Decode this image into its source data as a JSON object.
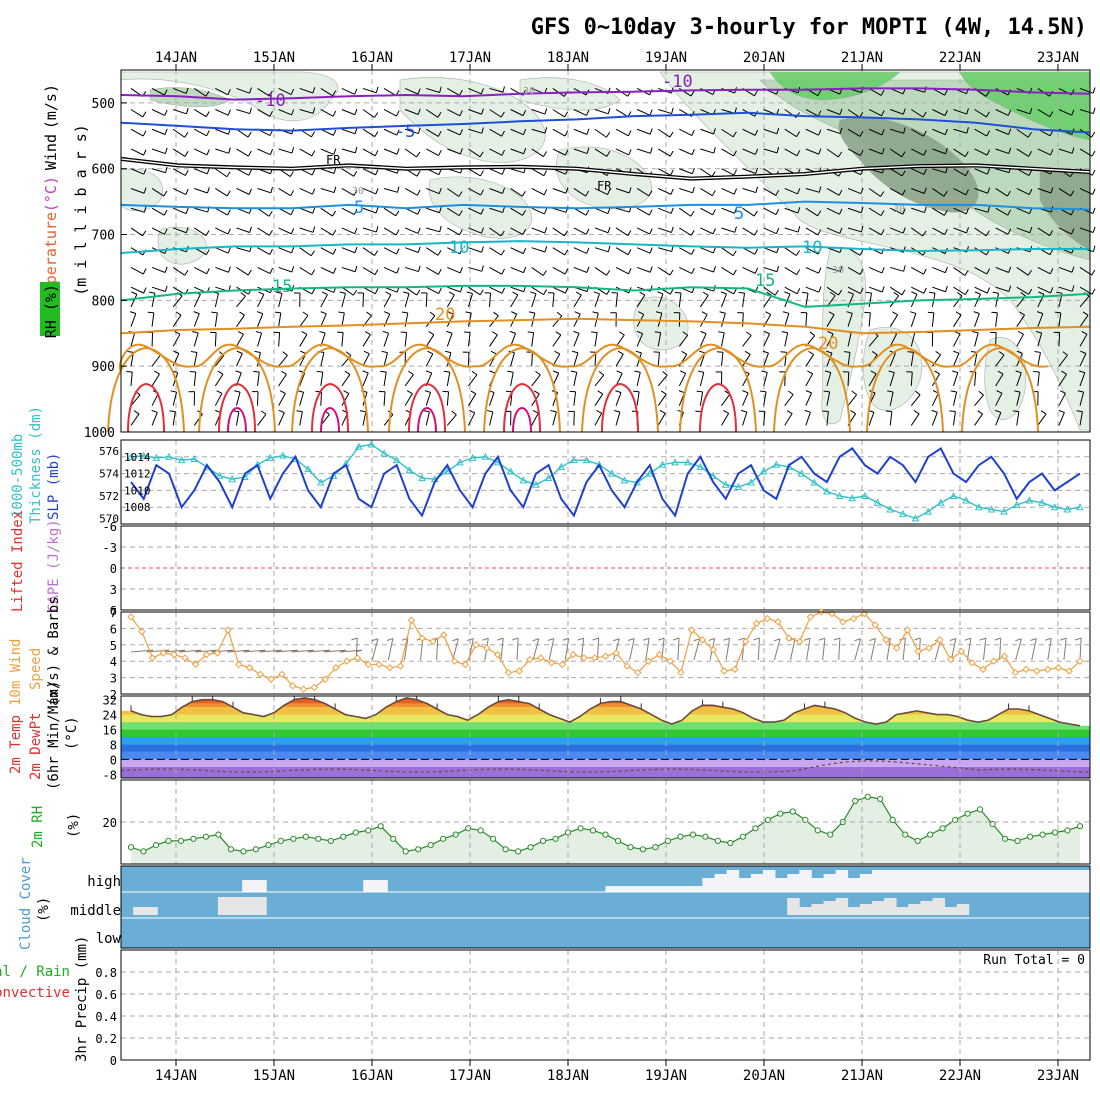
{
  "title": "GFS 0~10day 3-hourly for MOPTI (4W, 14.5N)",
  "date_labels": [
    "14JAN",
    "15JAN",
    "16JAN",
    "17JAN",
    "18JAN",
    "19JAN",
    "20JAN",
    "21JAN",
    "22JAN",
    "23JAN"
  ],
  "colors": {
    "temp_purple": "#8a1fc2",
    "temp_blue": "#1f4fd6",
    "temp_lightblue": "#1e90e0",
    "temp_cyan": "#19b5c9",
    "temp_green": "#12b883",
    "temp_orange": "#e09020",
    "temp_red": "#e0303a",
    "temp_magenta": "#d0107a",
    "rh_light": "#e3efe3",
    "rh_mid": "#b9d7b9",
    "rh_dark": "#8ca58c",
    "rh_bright": "#6ccf6c",
    "slp": "#1f3fd0",
    "thickness": "#30c0c8",
    "wind10": "#f0a040",
    "cloud": "#6aaed6",
    "cloud_clear": "#f3f3f8"
  },
  "chart_data": [
    {
      "type": "contour",
      "name": "upper_air",
      "ylabel_parts": [
        "Wind (m/s)",
        "Temperature (°C)",
        "RH (%)",
        "(millibars)"
      ],
      "ylabel_wind": "Wind",
      "ylabel_wind_unit": "(m/s)",
      "ylabel_temp": "Temperature",
      "ylabel_temp_unit": "(°C)",
      "ylabel_rh": "RH (%)",
      "ylabel_pressure": "(m i l l i b a r s)",
      "y_ticks": [
        500,
        600,
        700,
        800,
        900,
        1000
      ],
      "y_tick_labels": [
        "500",
        "600",
        "700",
        "800",
        "900",
        "1000"
      ],
      "ylim": [
        450,
        1000
      ],
      "isotherms": [
        {
          "label": "-10",
          "color_key": "temp_purple",
          "pressure": [
            488,
            490,
            495,
            493,
            490,
            488,
            490,
            486,
            484,
            483,
            481,
            480,
            480,
            478,
            478,
            480,
            484,
            486
          ]
        },
        {
          "label": "-5",
          "color_key": "temp_blue",
          "pressure": [
            530,
            535,
            540,
            542,
            538,
            535,
            532,
            528,
            525,
            520,
            518,
            515,
            520,
            522,
            525,
            530,
            540,
            545
          ]
        },
        {
          "label": "FR",
          "color_key": "black",
          "pressure": [
            585,
            595,
            598,
            600,
            595,
            600,
            598,
            597,
            600,
            608,
            615,
            612,
            608,
            600,
            596,
            595,
            600,
            605
          ]
        },
        {
          "label": "5",
          "color_key": "temp_lightblue",
          "pressure": [
            655,
            658,
            660,
            660,
            655,
            660,
            655,
            658,
            660,
            658,
            655,
            655,
            650,
            652,
            655,
            655,
            660,
            662
          ]
        },
        {
          "label": "10",
          "color_key": "temp_cyan",
          "pressure": [
            728,
            722,
            718,
            718,
            715,
            715,
            712,
            710,
            712,
            715,
            718,
            720,
            718,
            722,
            725,
            724,
            722,
            722
          ]
        },
        {
          "label": "15",
          "color_key": "temp_green",
          "pressure": [
            800,
            790,
            785,
            782,
            780,
            780,
            778,
            778,
            780,
            785,
            780,
            782,
            810,
            805,
            800,
            798,
            795,
            790
          ]
        },
        {
          "label": "20",
          "color_key": "temp_orange",
          "pressure": [
            850,
            845,
            843,
            840,
            838,
            835,
            832,
            830,
            828,
            830,
            832,
            835,
            840,
            850,
            848,
            845,
            842,
            840
          ]
        }
      ],
      "isotherm_labels": {
        "m10a": "-10",
        "m10b": "-10",
        "m5": "-5",
        "fr1": "FR",
        "fr2": "FR",
        "p5a": "5",
        "p5b": "5",
        "p10a": "10",
        "p10b": "10",
        "p15a": "15",
        "p15b": "15",
        "p20a": "20",
        "p20b": "20",
        "rh30a": "30",
        "rh30b": "30",
        "rh30c": "30",
        "rh30d": "30"
      }
    },
    {
      "type": "line",
      "name": "slp_thickness",
      "ylabel_left": "1000-500mb Thickness (dm)",
      "ylabel_left_1": "1000-500mb",
      "ylabel_left_2": "Thickness (dm)",
      "ylabel_right": "SLP (mb)",
      "left_ticks": [
        "576",
        "574",
        "572",
        "570"
      ],
      "right_ticks": [
        "1014",
        "1012",
        "1010",
        "1008"
      ],
      "series": [
        {
          "name": "SLP",
          "values": [
            1011,
            1009,
            1013,
            1012,
            1008,
            1010,
            1013,
            1011,
            1008,
            1012,
            1013,
            1009,
            1012,
            1014,
            1010,
            1008,
            1012,
            1013,
            1009,
            1008,
            1012,
            1013,
            1009,
            1007,
            1011,
            1013,
            1010,
            1008,
            1012,
            1014,
            1010,
            1008,
            1012,
            1013,
            1009,
            1007,
            1011,
            1013,
            1010,
            1008,
            1011,
            1013,
            1009,
            1007,
            1012,
            1014,
            1011,
            1009,
            1012,
            1013,
            1010,
            1009,
            1013,
            1014,
            1012,
            1011,
            1014,
            1015,
            1013,
            1012,
            1014,
            1013,
            1011,
            1014,
            1015,
            1012,
            1011,
            1013,
            1014,
            1012,
            1009,
            1011,
            1012,
            1010,
            1011,
            1012
          ]
        },
        {
          "name": "Thickness",
          "values": [
            575.5,
            575.6,
            575.4,
            575.5,
            575.2,
            575.3,
            574.6,
            573.8,
            573.5,
            573.7,
            574.8,
            575.4,
            575.6,
            575.3,
            574.4,
            573.2,
            573.8,
            574.9,
            576.4,
            576.6,
            575.8,
            575.2,
            574.3,
            573.6,
            573.5,
            574.2,
            575.0,
            575.4,
            575.5,
            575.0,
            574.2,
            573.4,
            573.0,
            573.6,
            574.6,
            575.2,
            575.2,
            574.8,
            574.0,
            573.4,
            573.2,
            574.0,
            574.8,
            575.0,
            575.0,
            574.6,
            573.8,
            573.0,
            572.8,
            573.2,
            574.2,
            574.8,
            574.6,
            574.0,
            573.2,
            572.4,
            572.0,
            571.8,
            572.0,
            571.4,
            570.8,
            570.4,
            570.0,
            570.6,
            571.4,
            572.0,
            571.6,
            571.0,
            570.8,
            570.6,
            571.2,
            571.6,
            571.4,
            571.0,
            570.8,
            571.0
          ]
        }
      ]
    },
    {
      "type": "line",
      "name": "cape_li",
      "ylabel_left": "Lifted Index",
      "ylabel_right": "CAPE (J/kg)",
      "y_ticks": [
        "-6",
        "-3",
        "0",
        "3",
        "6"
      ],
      "lifted_index_zero_line": 0
    },
    {
      "type": "line",
      "name": "wind10m",
      "ylabel": "10m Wind Speed (m/s) & Barbs",
      "ylabel_1": "10m Wind",
      "ylabel_2": "Speed",
      "ylabel_3": "(m/s) & Barbs",
      "y_ticks": [
        "7",
        "6",
        "5",
        "4",
        "3",
        "2"
      ],
      "ylim": [
        2,
        7
      ],
      "values": [
        6.7,
        5.8,
        4.2,
        4.5,
        4.4,
        4.2,
        3.8,
        4.4,
        4.5,
        5.9,
        3.8,
        3.6,
        3.2,
        2.9,
        3.2,
        2.5,
        2.3,
        2.4,
        2.9,
        3.6,
        4.0,
        4.2,
        3.8,
        3.8,
        3.6,
        3.7,
        6.5,
        5.4,
        5.2,
        5.6,
        4.0,
        3.8,
        5.0,
        4.8,
        4.4,
        3.3,
        3.4,
        4.1,
        4.2,
        3.9,
        3.8,
        4.4,
        4.2,
        4.2,
        4.3,
        4.5,
        3.7,
        3.3,
        4.0,
        4.4,
        4.0,
        3.3,
        5.9,
        5.3,
        4.7,
        3.4,
        3.5,
        5.2,
        6.3,
        6.6,
        6.4,
        5.4,
        5.2,
        6.7,
        7.0,
        6.9,
        6.4,
        6.6,
        6.9,
        6.2,
        5.3,
        4.8,
        5.9,
        4.6,
        4.8,
        5.3,
        4.1,
        4.6,
        3.9,
        3.5,
        4.0,
        4.3,
        3.3,
        3.5,
        3.4,
        3.5,
        3.6,
        3.4,
        4.0
      ]
    },
    {
      "type": "area",
      "name": "temp2m",
      "ylabel": "2m Temp 2m DewPt (6hr Min/Max) (°C)",
      "ylabel_1": "2m Temp",
      "ylabel_2": "2m DewPt",
      "ylabel_3": "(6hr Min/Max)",
      "ylabel_4": "(°C)",
      "y_ticks": [
        "32",
        "24",
        "16",
        "8",
        "0",
        "-8"
      ],
      "ylim": [
        -10,
        34
      ],
      "temperature": [
        26,
        24,
        23,
        23,
        24,
        28,
        31,
        32,
        32,
        31,
        28,
        25,
        24,
        23,
        25,
        29,
        32,
        33,
        32,
        30,
        27,
        24,
        23,
        22,
        24,
        28,
        31,
        33,
        32,
        30,
        27,
        24,
        23,
        21,
        24,
        28,
        31,
        32,
        31,
        30,
        27,
        24,
        22,
        20,
        23,
        27,
        30,
        31,
        31,
        29,
        27,
        24,
        21,
        19,
        21,
        26,
        29,
        29,
        28,
        27,
        25,
        22,
        20,
        20,
        21,
        25,
        27,
        29,
        28,
        27,
        25,
        22,
        20,
        19,
        20,
        24,
        25,
        26,
        25,
        24,
        24,
        23,
        21,
        20,
        21,
        24,
        27,
        27,
        26,
        24,
        22,
        20,
        19,
        18
      ]
    },
    {
      "type": "area",
      "name": "rh2m",
      "ylabel": "2m RH",
      "unit": "(%)",
      "y_ticks": [
        "20"
      ],
      "ylim": [
        0,
        40
      ],
      "values": [
        8,
        6,
        9,
        11,
        11,
        12,
        13,
        14,
        7,
        6,
        7,
        9,
        11,
        12,
        13,
        12,
        11,
        13,
        15,
        16,
        18,
        12,
        6,
        7,
        9,
        12,
        14,
        17,
        16,
        12,
        7,
        6,
        8,
        11,
        12,
        15,
        17,
        16,
        14,
        11,
        8,
        7,
        8,
        11,
        13,
        14,
        13,
        11,
        10,
        13,
        17,
        21,
        24,
        25,
        21,
        16,
        14,
        20,
        30,
        32,
        31,
        21,
        14,
        11,
        14,
        17,
        21,
        24,
        26,
        19,
        12,
        11,
        13,
        14,
        15,
        16,
        18
      ]
    },
    {
      "type": "heatmap",
      "name": "cloud_cover",
      "ylabel": "Cloud Cover (%)",
      "ylabel_1": "Cloud Cover",
      "ylabel_2": "(%)",
      "level_labels": [
        "high",
        "middle",
        "low"
      ]
    },
    {
      "type": "bar",
      "name": "precip",
      "ylabel": "3hr Precip (mm)",
      "ylabel_total": "Total / Rain",
      "ylabel_convective": "Convective",
      "y_ticks": [
        "0.8",
        "0.6",
        "0.4",
        "0.2",
        "0"
      ],
      "ylim": [
        0,
        1
      ],
      "values": [],
      "run_total_label": "Run Total = 0"
    }
  ]
}
